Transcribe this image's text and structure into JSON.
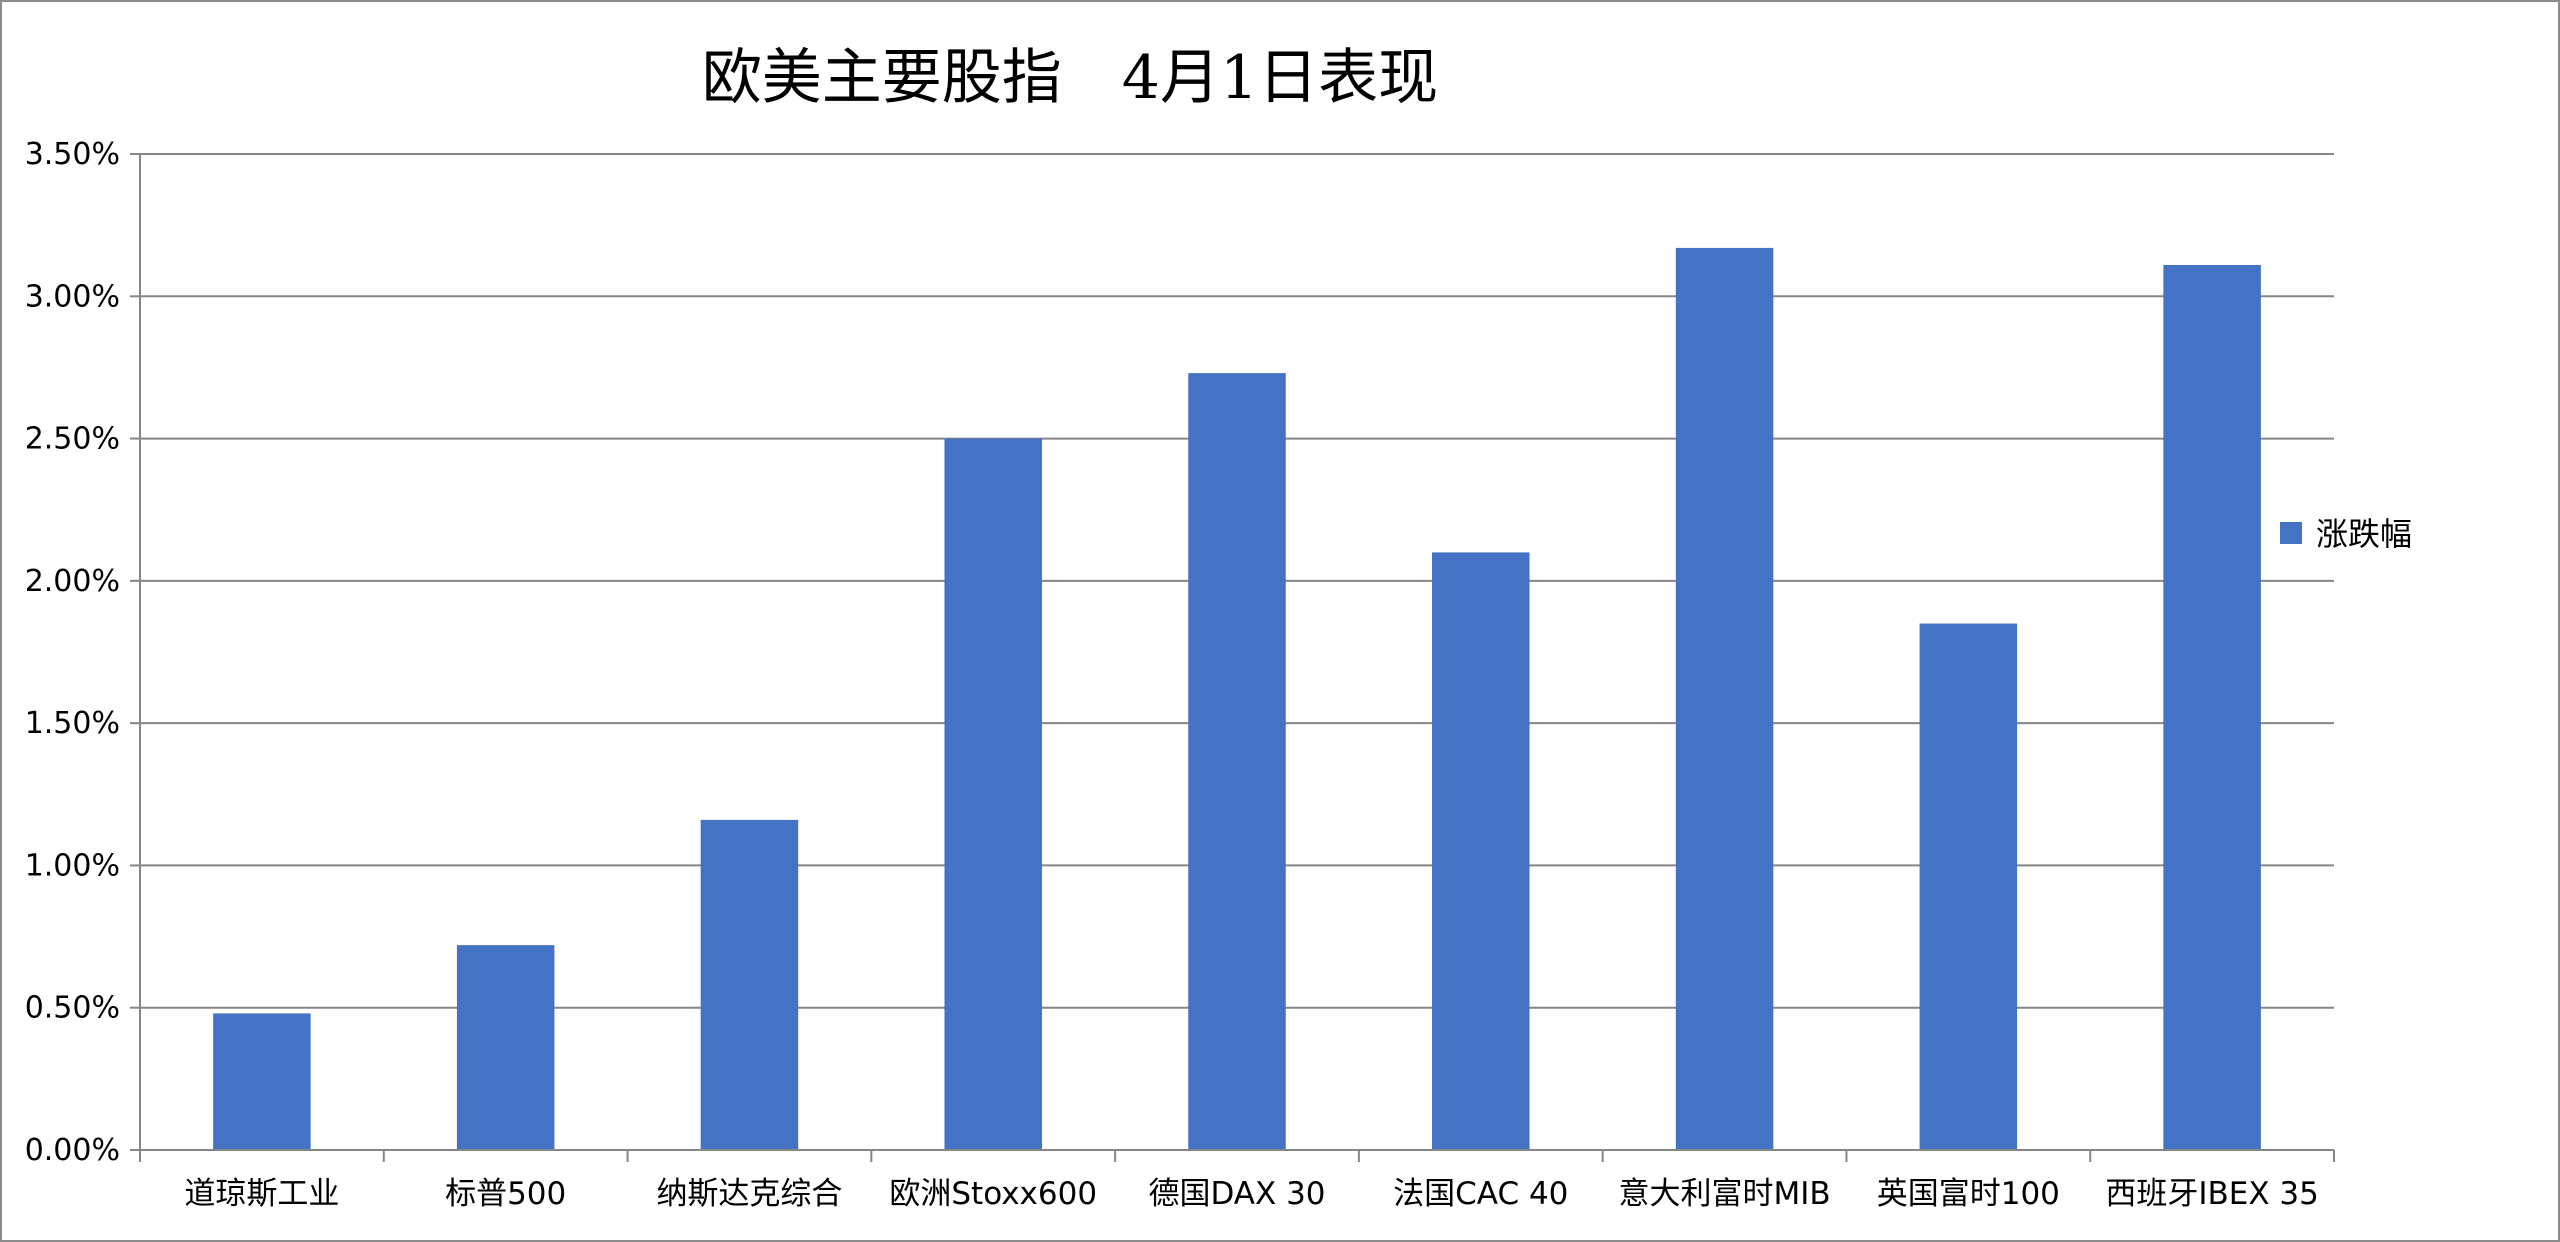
{
  "chart_data": {
    "type": "bar",
    "title": "欧美主要股指　4月1日表现",
    "xlabel": "",
    "ylabel": "",
    "categories": [
      "道琼斯工业",
      "标普500",
      "纳斯达克综合",
      "欧洲Stoxx600",
      "德国DAX 30",
      "法国CAC 40",
      "意大利富时MIB",
      "英国富时100",
      "西班牙IBEX 35"
    ],
    "series": [
      {
        "name": "涨跌幅",
        "color": "#4472C4",
        "values": [
          0.0048,
          0.0072,
          0.0116,
          0.025,
          0.0273,
          0.021,
          0.0317,
          0.0185,
          0.0311
        ]
      }
    ],
    "ylim": [
      0,
      0.035
    ],
    "yticks": [
      0,
      0.005,
      0.01,
      0.015,
      0.02,
      0.025,
      0.03,
      0.035
    ],
    "ytick_labels": [
      "0.00%",
      "0.50%",
      "1.00%",
      "1.50%",
      "2.00%",
      "2.50%",
      "3.00%",
      "3.50%"
    ],
    "grid": true,
    "legend": "right"
  }
}
